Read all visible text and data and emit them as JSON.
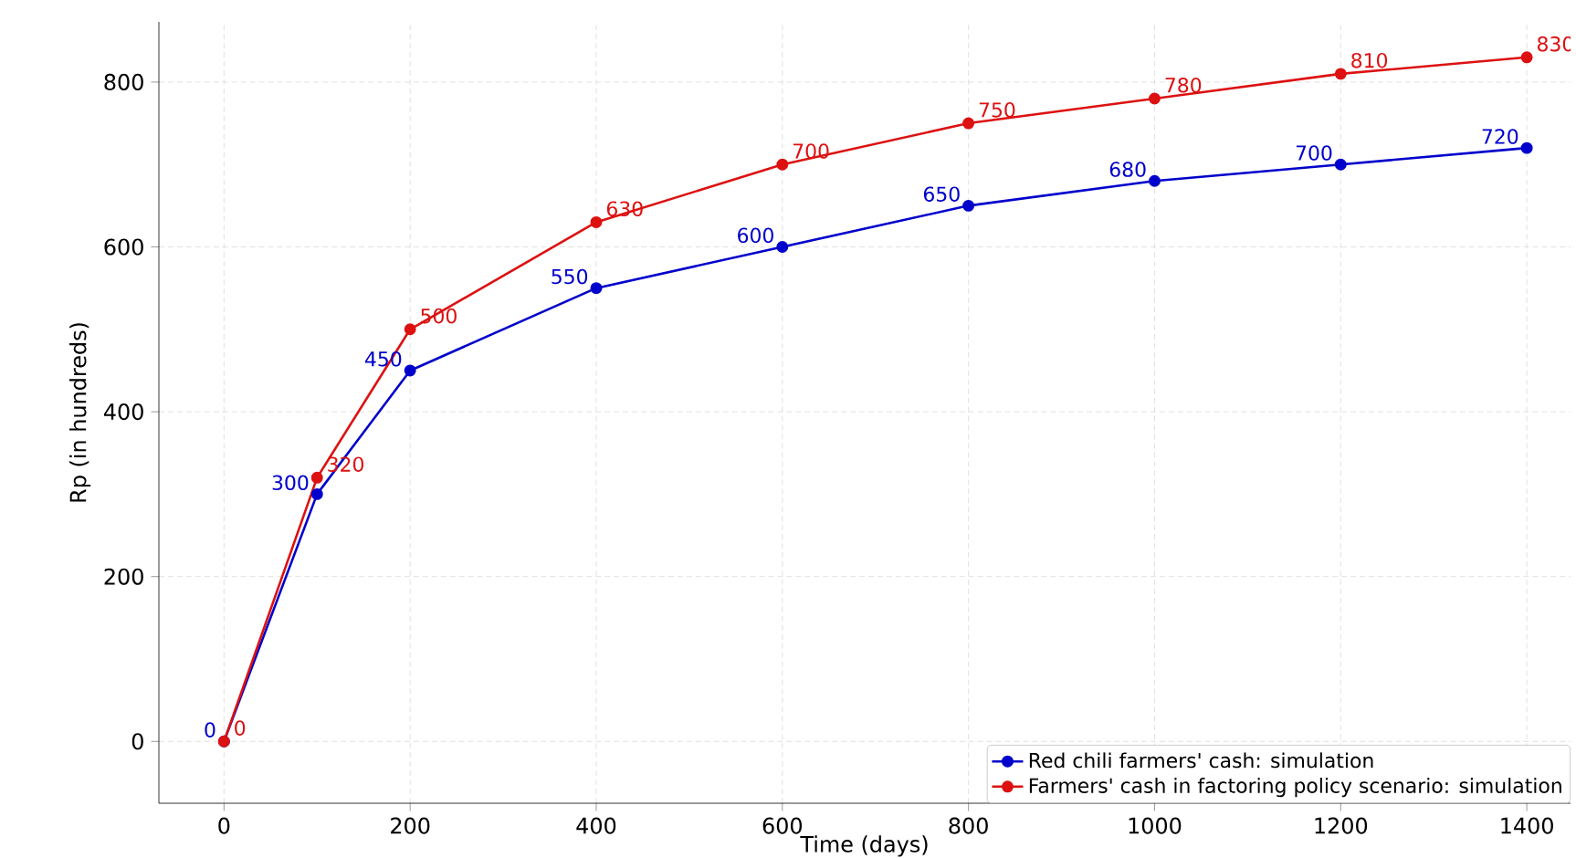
{
  "chart_data": {
    "type": "line",
    "xlabel": "Time (days)",
    "ylabel": "Rp (in hundreds)",
    "x": [
      0,
      100,
      200,
      400,
      600,
      800,
      1000,
      1200,
      1400
    ],
    "series": [
      {
        "name": "Red chili farmers' cash: simulation",
        "color": "#0000cc",
        "values": [
          0,
          300,
          450,
          550,
          600,
          650,
          680,
          700,
          720
        ]
      },
      {
        "name": "Farmers' cash in factoring policy scenario: simulation",
        "color": "#dd1111",
        "values": [
          0,
          320,
          500,
          630,
          700,
          750,
          780,
          810,
          830
        ]
      }
    ],
    "xlim": [
      -70,
      1447
    ],
    "ylim": [
      -75,
      873
    ],
    "xticks": [
      0,
      200,
      400,
      600,
      800,
      1000,
      1200,
      1400
    ],
    "yticks": [
      0,
      200,
      400,
      600,
      800
    ],
    "grid": true,
    "legend": "bottom right",
    "marker": "circle",
    "line_style": "solid",
    "data_labels": true
  }
}
